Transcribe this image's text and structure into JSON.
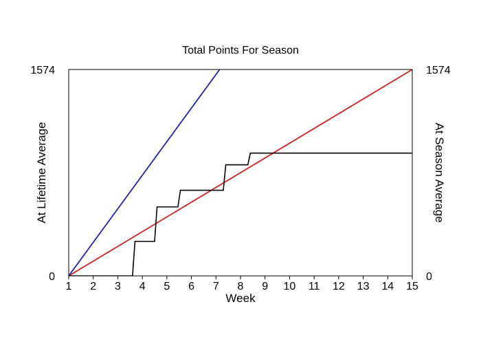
{
  "chart_data": {
    "type": "line",
    "title": "Total Points For Season",
    "xlabel": "Week",
    "ylabel_left": "At Lifetime Average",
    "ylabel_right": "At Season Average",
    "xlim": [
      1,
      15
    ],
    "ylim": [
      0,
      1574
    ],
    "x_ticks": [
      "1",
      "2",
      "3",
      "4",
      "5",
      "6",
      "7",
      "8",
      "9",
      "10",
      "11",
      "12",
      "13",
      "14",
      "15"
    ],
    "y_ticks_left": [
      "0",
      "1574"
    ],
    "y_ticks_right": [
      "0",
      "1574"
    ],
    "grid": false,
    "colors": {
      "lifetime": "#1f1fbf",
      "season": "#d81e1e",
      "actual": "#000000",
      "axis_left_label": "#1f1fbf",
      "axis_right_label": "#d81e1e"
    },
    "series": [
      {
        "key": "lifetime",
        "x": [
          1,
          7.15
        ],
        "y": [
          0,
          1574
        ]
      },
      {
        "key": "season",
        "x": [
          1,
          15
        ],
        "y": [
          0,
          1574
        ]
      },
      {
        "key": "actual",
        "step": true,
        "x": [
          1,
          3.6,
          3.7,
          4.5,
          4.6,
          5.45,
          5.55,
          7.3,
          7.4,
          8.3,
          8.4,
          15
        ],
        "y": [
          0,
          0,
          263,
          263,
          526,
          526,
          653,
          653,
          847,
          847,
          936,
          936
        ]
      }
    ]
  }
}
